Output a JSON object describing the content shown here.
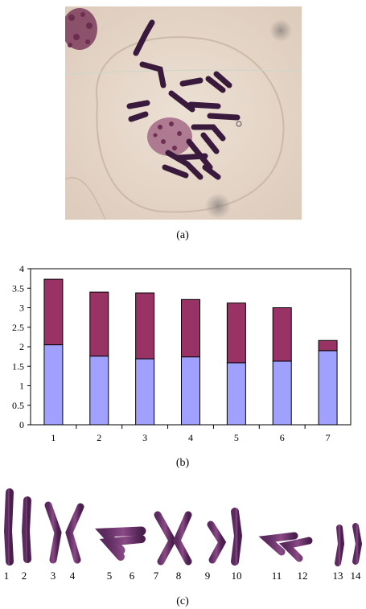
{
  "panels": {
    "a": {
      "label": "(a)"
    },
    "b": {
      "label": "(b)"
    },
    "c": {
      "label": "(c)"
    }
  },
  "chart_data": {
    "type": "bar",
    "stacked": true,
    "categories": [
      "1",
      "2",
      "3",
      "4",
      "5",
      "6",
      "7"
    ],
    "series": [
      {
        "values": [
          2.05,
          1.76,
          1.69,
          1.74,
          1.59,
          1.63,
          1.9
        ],
        "color": "#a0a0ff"
      },
      {
        "values": [
          1.68,
          1.64,
          1.69,
          1.47,
          1.53,
          1.37,
          0.26
        ],
        "color": "#993366"
      }
    ],
    "ylim": [
      0,
      4
    ],
    "yticks": [
      "0",
      "0.5",
      "1",
      "1.5",
      "2",
      "2.5",
      "3",
      "3.5",
      "4"
    ],
    "grid": false
  },
  "karyotype": {
    "labels": [
      "1",
      "2",
      "3",
      "4",
      "5",
      "6",
      "7",
      "8",
      "9",
      "10",
      "11",
      "12",
      "13",
      "14"
    ]
  }
}
